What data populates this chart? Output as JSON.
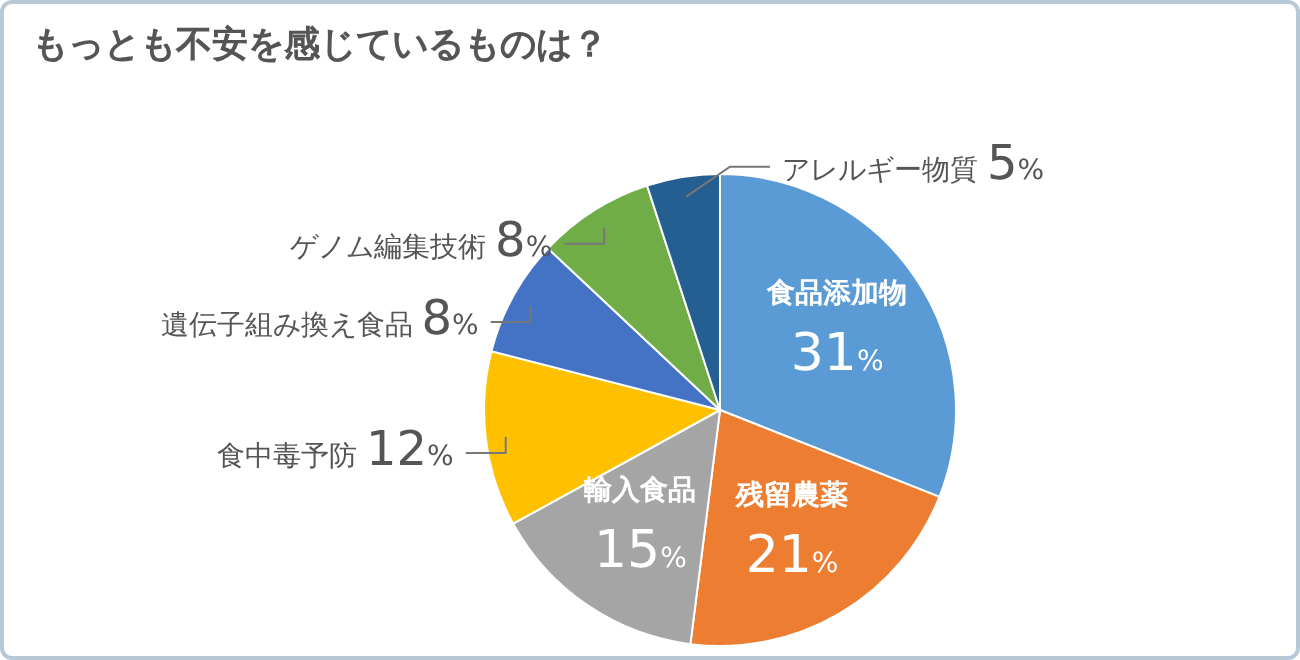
{
  "chart_data": {
    "type": "pie",
    "title": "もっとも不安を感じているものは？",
    "categories": [
      "食品添加物",
      "残留農薬",
      "輸入食品",
      "食中毒予防",
      "遺伝子組み換え食品",
      "ゲノム編集技術",
      "アレルギー物質"
    ],
    "values": [
      31,
      21,
      15,
      12,
      8,
      8,
      5
    ],
    "colors": [
      "#5b9bd5",
      "#ed7d31",
      "#a5a5a5",
      "#ffc000",
      "#4472c4",
      "#70ad47",
      "#255e91"
    ],
    "value_labels": [
      "31%",
      "21%",
      "15%",
      "12%",
      "8%",
      "8%",
      "5%"
    ],
    "legend": false
  }
}
